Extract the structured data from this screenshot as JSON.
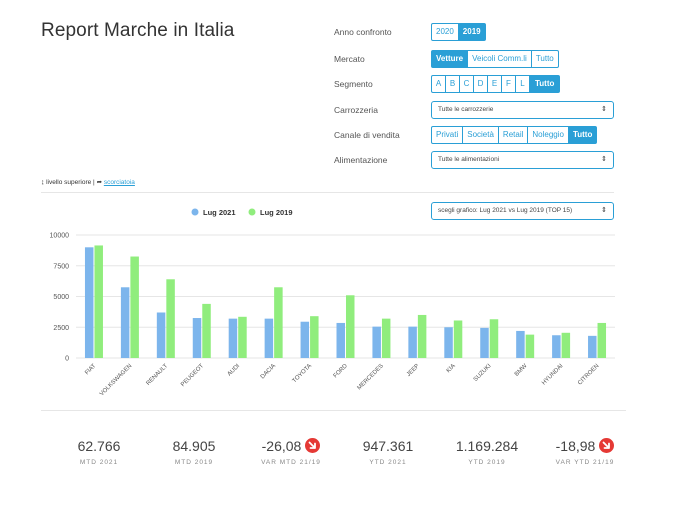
{
  "page": {
    "title": "Report Marche in Italia"
  },
  "filters": {
    "anno": {
      "label": "Anno confronto",
      "options": [
        "2020",
        "2019"
      ],
      "active": 1
    },
    "mercato": {
      "label": "Mercato",
      "options": [
        "Vetture",
        "Veicoli Comm.li",
        "Tutto"
      ],
      "active": 0
    },
    "segmento": {
      "label": "Segmento",
      "options": [
        "A",
        "B",
        "C",
        "D",
        "E",
        "F",
        "L",
        "Tutto"
      ],
      "active": 7
    },
    "carrozzeria": {
      "label": "Carrozzeria",
      "value": "Tutte le carrozzerie"
    },
    "canale": {
      "label": "Canale di vendita",
      "options": [
        "Privati",
        "Società",
        "Retail",
        "Noleggio",
        "Tutto"
      ],
      "active": 4
    },
    "alimentazione": {
      "label": "Alimentazione",
      "value": "Tutte le alimentazioni"
    }
  },
  "breadcrumb": {
    "up": "livello superiore",
    "sep": "|",
    "shortcut": "scorciatoia"
  },
  "chart_select": {
    "value": "scegli grafico: Lug 2021 vs Lug 2019 (TOP 15)"
  },
  "chart_data": {
    "type": "bar",
    "title": "",
    "xlabel": "",
    "ylabel": "",
    "categories": [
      "FIAT",
      "VOLKSWAGEN",
      "RENAULT",
      "PEUGEOT",
      "AUDI",
      "DACIA",
      "TOYOTA",
      "FORD",
      "MERCEDES",
      "JEEP",
      "KIA",
      "SUZUKI",
      "BMW",
      "HYUNDAI",
      "CITROEN"
    ],
    "series": [
      {
        "name": "Lug 2021",
        "color": "#7cb5ec",
        "values": [
          9000,
          5750,
          3700,
          3250,
          3200,
          3200,
          2950,
          2850,
          2550,
          2550,
          2500,
          2450,
          2200,
          1850,
          1800
        ]
      },
      {
        "name": "Lug 2019",
        "color": "#90ed7d",
        "values": [
          9150,
          8250,
          6400,
          4400,
          3350,
          5750,
          3400,
          5100,
          3200,
          3500,
          3050,
          3150,
          1900,
          2050,
          2850
        ]
      }
    ],
    "ylim": [
      0,
      10000
    ],
    "yticks": [
      "0",
      "2500",
      "5000",
      "7500",
      "10000"
    ],
    "legend": "top-center",
    "grid": true
  },
  "kpis": [
    {
      "value": "62.766",
      "label": "MTD 2021"
    },
    {
      "value": "84.905",
      "label": "MTD 2019"
    },
    {
      "value": "-26,08",
      "label": "VAR MTD 21/19",
      "trend": "down"
    },
    {
      "value": "947.361",
      "label": "YTD 2021"
    },
    {
      "value": "1.169.284",
      "label": "YTD 2019"
    },
    {
      "value": "-18,98",
      "label": "VAR YTD 21/19",
      "trend": "down"
    }
  ]
}
